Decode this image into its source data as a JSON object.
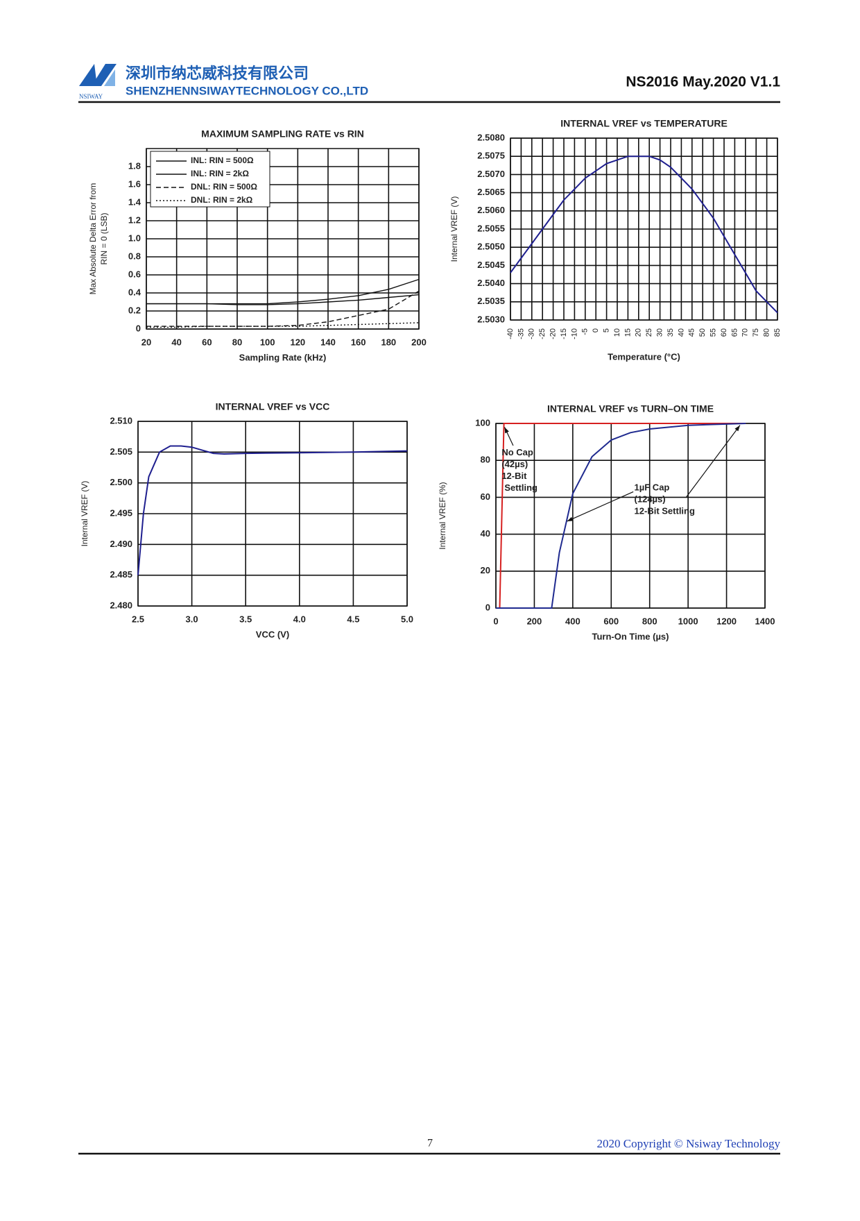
{
  "header": {
    "company_cn": "深圳市纳芯威科技有限公司",
    "company_en": "SHENZHENNSIWAYTECHNOLOGY CO.,LTD",
    "logo_text": "NSIWAY",
    "doc": "NS2016 May.2020 V1.1"
  },
  "footer": {
    "page": "7",
    "copyright": "2020 Copyright © Nsiway Technology"
  },
  "chart_data": [
    {
      "type": "line",
      "title": "MAXIMUM SAMPLING RATE vs RIN",
      "xlabel": "Sampling Rate (kHz)",
      "ylabel": [
        "Max Absolute Delta Error from",
        "RIN = 0 (LSB)"
      ],
      "x": [
        20,
        40,
        60,
        80,
        100,
        120,
        140,
        160,
        180,
        200
      ],
      "xlim": [
        20,
        200
      ],
      "xticks": [
        20,
        40,
        60,
        80,
        100,
        120,
        140,
        160,
        180,
        200
      ],
      "ylim": [
        0,
        2
      ],
      "yticks": [
        0,
        0.2,
        0.4,
        0.6,
        0.8,
        {
          "value": 1,
          "label": "1.0"
        },
        1.2,
        1.4,
        1.6,
        1.8
      ],
      "grid": true,
      "legend": "upper left",
      "series": [
        {
          "name": "INL: RIN = 500Ω",
          "color": "#111111",
          "style": "solid",
          "values": [
            0.28,
            0.28,
            0.28,
            0.28,
            0.28,
            0.3,
            0.33,
            0.37,
            0.44,
            0.55
          ]
        },
        {
          "name": "INL: RIN = 2kΩ",
          "color": "#111111",
          "style": "solid",
          "values": [
            0.28,
            0.28,
            0.28,
            0.27,
            0.27,
            0.28,
            0.3,
            0.32,
            0.35,
            0.38
          ]
        },
        {
          "name": "DNL: RIN = 500Ω",
          "color": "#111111",
          "style": "dashed",
          "values": [
            0.03,
            0.03,
            0.03,
            0.03,
            0.03,
            0.04,
            0.08,
            0.15,
            0.22,
            0.42
          ]
        },
        {
          "name": "DNL: RIN = 2kΩ",
          "color": "#111111",
          "style": "dotted",
          "values": [
            0.02,
            0.02,
            0.03,
            0.03,
            0.03,
            0.03,
            0.04,
            0.05,
            0.06,
            0.07
          ]
        }
      ]
    },
    {
      "type": "line",
      "title": "INTERNAL VREF vs TEMPERATURE",
      "xlabel": "Temperature (°C)",
      "ylabel": [
        "Internal VREF (V)"
      ],
      "x": [
        -40,
        -35,
        -30,
        -25,
        -20,
        -15,
        -10,
        -5,
        0,
        5,
        10,
        15,
        20,
        25,
        30,
        35,
        40,
        45,
        50,
        55,
        60,
        65,
        70,
        75,
        80,
        85
      ],
      "xlim": [
        -40,
        85
      ],
      "xticks": [
        -40,
        -35,
        -30,
        -25,
        -20,
        -15,
        -10,
        -5,
        0,
        5,
        10,
        15,
        20,
        25,
        30,
        35,
        40,
        45,
        50,
        55,
        60,
        65,
        70,
        75,
        80,
        85
      ],
      "ylim": [
        2.503,
        2.508
      ],
      "yticks": [
        {
          "value": 2.508,
          "label": "2.5080"
        },
        2.5075,
        {
          "value": 2.507,
          "label": "2.5070"
        },
        2.5065,
        {
          "value": 2.506,
          "label": "2.5060"
        },
        2.5055,
        {
          "value": 2.505,
          "label": "2.5050"
        },
        2.5045,
        {
          "value": 2.504,
          "label": "2.5040"
        },
        2.5035,
        {
          "value": 2.503,
          "label": "2.5030"
        }
      ],
      "grid": true,
      "series": [
        {
          "color": "#1f1f8f",
          "style": "solid",
          "values": [
            2.5043,
            2.5047,
            2.5051,
            2.5055,
            2.5059,
            2.5063,
            2.5066,
            2.5069,
            2.5071,
            2.5073,
            2.5074,
            2.5075,
            2.5075,
            2.5075,
            2.5074,
            2.5072,
            2.5069,
            2.5066,
            2.5062,
            2.5058,
            2.5053,
            2.5048,
            2.5043,
            2.5038,
            2.5035,
            2.5032
          ]
        }
      ]
    },
    {
      "type": "line",
      "title": "INTERNAL VREF vs VCC",
      "xlabel": "VCC (V)",
      "ylabel": [
        "Internal VREF (V)"
      ],
      "x": [
        2.5,
        2.55,
        2.6,
        2.7,
        2.8,
        2.9,
        3.0,
        3.1,
        3.2,
        3.3,
        3.5,
        4.0,
        4.5,
        5.0
      ],
      "xlim": [
        2.5,
        5
      ],
      "xticks": [
        2.5,
        {
          "value": 3,
          "label": "3.0"
        },
        3.5,
        {
          "value": 4,
          "label": "4.0"
        },
        4.5,
        {
          "value": 5,
          "label": "5.0"
        }
      ],
      "ylim": [
        2.48,
        2.51
      ],
      "yticks": [
        {
          "value": 2.51,
          "label": "2.510"
        },
        2.505,
        {
          "value": 2.5,
          "label": "2.500"
        },
        2.495,
        {
          "value": 2.49,
          "label": "2.490"
        },
        2.485,
        {
          "value": 2.48,
          "label": "2.480"
        }
      ],
      "grid": true,
      "series": [
        {
          "color": "#1f1f8f",
          "style": "solid",
          "values": [
            2.485,
            2.495,
            2.501,
            2.505,
            2.506,
            2.506,
            2.5058,
            2.5053,
            2.5048,
            2.5047,
            2.5048,
            2.5049,
            2.505,
            2.5052
          ]
        }
      ]
    },
    {
      "type": "line",
      "title": "INTERNAL VREF vs TURN–ON TIME",
      "xlabel": "Turn-On Time (µs)",
      "ylabel": [
        "Internal VREF (%)"
      ],
      "xlim": [
        0,
        1400
      ],
      "xticks": [
        0,
        200,
        400,
        600,
        800,
        1000,
        1200,
        1400
      ],
      "ylim": [
        0,
        100
      ],
      "yticks": [
        0,
        20,
        40,
        60,
        80,
        100
      ],
      "grid": true,
      "series": [
        {
          "color": "#d62020",
          "style": "solid",
          "x": [
            20,
            42,
            1300
          ],
          "values": [
            0,
            100,
            100
          ]
        },
        {
          "color": "#1f2a8f",
          "style": "solid",
          "x": [
            0,
            290,
            330,
            400,
            500,
            600,
            700,
            800,
            1000,
            1300
          ],
          "values": [
            0,
            0,
            30,
            62,
            82,
            91,
            95,
            97,
            99,
            100
          ]
        }
      ],
      "annotations": [
        {
          "lines": [
            "No Cap",
            "(42µs)",
            "12-Bit",
            "Settling"
          ]
        },
        {
          "lines": [
            "1µF Cap",
            "(124µs)",
            "12-Bit Settling"
          ]
        }
      ]
    }
  ]
}
